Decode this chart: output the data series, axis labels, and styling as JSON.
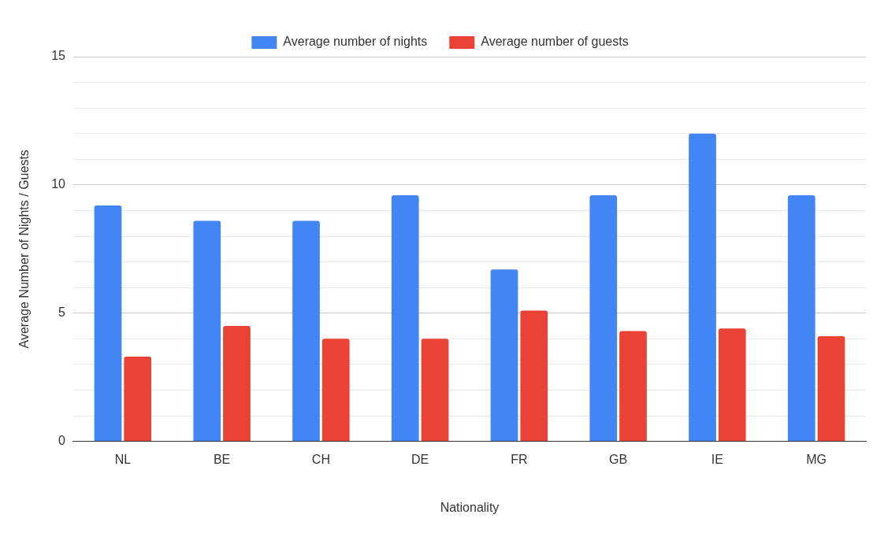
{
  "chart_data": {
    "type": "bar",
    "xlabel": "Nationality",
    "ylabel": "Average Number of Nights / Guests",
    "categories": [
      "NL",
      "BE",
      "CH",
      "DE",
      "FR",
      "GB",
      "IE",
      "MG"
    ],
    "series": [
      {
        "name": "Average number of nights",
        "color": "#4285f4",
        "values": [
          9.2,
          8.6,
          8.6,
          9.6,
          6.7,
          9.6,
          12.0,
          9.6
        ]
      },
      {
        "name": "Average number of guests",
        "color": "#ea4335",
        "values": [
          3.3,
          4.5,
          4.0,
          4.0,
          5.1,
          4.3,
          4.4,
          4.1
        ]
      }
    ],
    "ylim": [
      0,
      15
    ],
    "yticks": [
      0,
      {
        "value": 1,
        "label": null
      },
      {
        "value": 2,
        "label": null
      },
      {
        "value": 3,
        "label": null
      },
      {
        "value": 4,
        "label": null
      },
      5,
      {
        "value": 6,
        "label": null
      },
      {
        "value": 7,
        "label": null
      },
      {
        "value": 8,
        "label": null
      },
      {
        "value": 9,
        "label": null
      },
      10,
      {
        "value": 11,
        "label": null
      },
      {
        "value": 12,
        "label": null
      },
      {
        "value": 13,
        "label": null
      },
      {
        "value": 14,
        "label": null
      },
      15
    ],
    "grid": "y",
    "legend": "top"
  }
}
